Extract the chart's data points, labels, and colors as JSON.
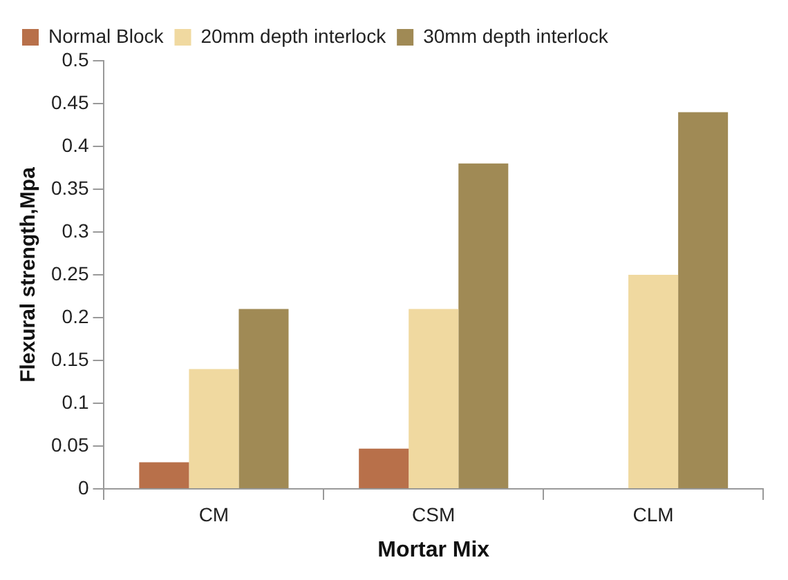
{
  "chart_data": {
    "type": "bar",
    "xlabel": "Mortar Mix",
    "ylabel": "Flexural strength,Mpa",
    "categories": [
      "CM",
      "CSM",
      "CLM"
    ],
    "series": [
      {
        "name": "Normal Block",
        "color": "#b8704a",
        "values": [
          0.031,
          0.047,
          null
        ]
      },
      {
        "name": "20mm depth interlock",
        "color": "#f0d9a0",
        "values": [
          0.14,
          0.21,
          0.25
        ]
      },
      {
        "name": "30mm depth interlock",
        "color": "#a08a55",
        "values": [
          0.21,
          0.38,
          0.44
        ]
      }
    ],
    "ylim": [
      0,
      0.5
    ],
    "yticks": [
      0,
      0.05,
      0.1,
      0.15,
      0.2,
      0.25,
      0.3,
      0.35,
      0.4,
      0.45,
      0.5
    ],
    "grid": false,
    "legend": "top left"
  }
}
